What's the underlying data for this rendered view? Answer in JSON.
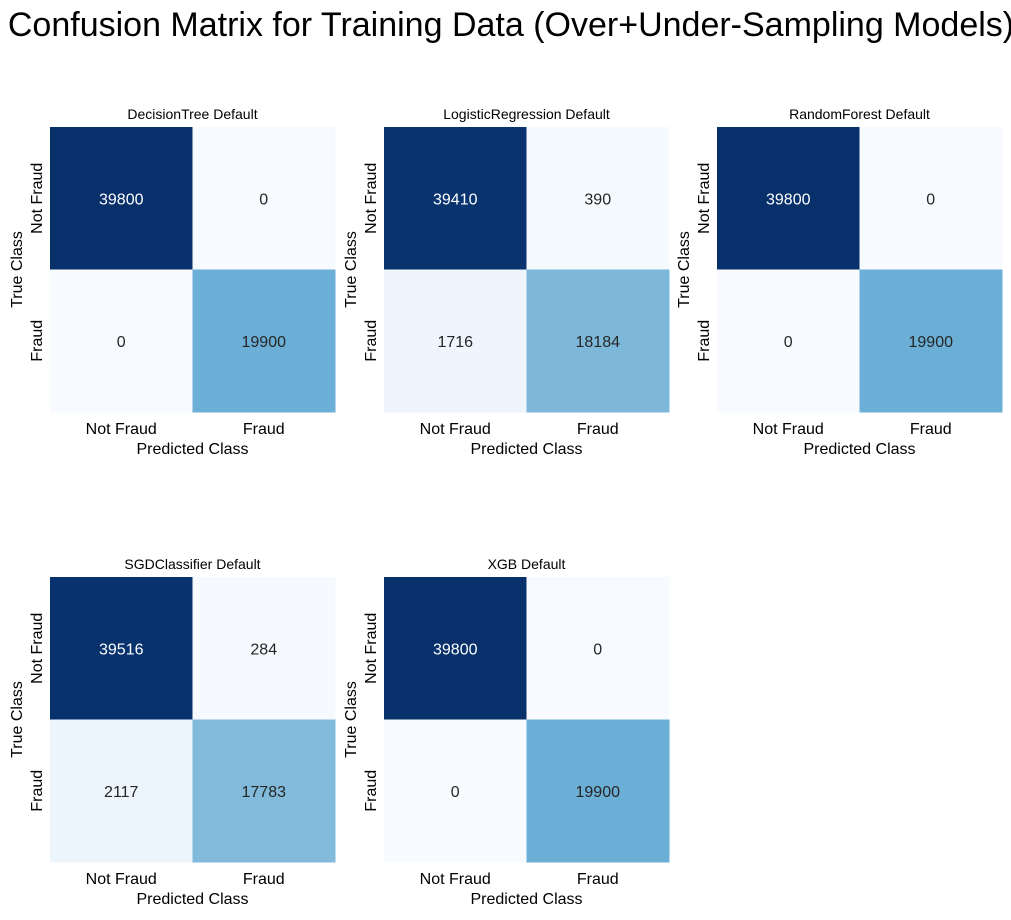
{
  "chart_data": {
    "title": "Confusion Matrix for Training Data (Over+Under-Sampling Models)",
    "type": "heatmap",
    "colormap": "Blues",
    "xlabel": "Predicted Class",
    "ylabel": "True Class",
    "x_categories": [
      "Not Fraud",
      "Fraud"
    ],
    "y_categories": [
      "Not Fraud",
      "Fraud"
    ],
    "color_range": [
      0,
      39800
    ],
    "panels": [
      {
        "title": "DecisionTree Default",
        "matrix": [
          [
            39800,
            0
          ],
          [
            0,
            19900
          ]
        ]
      },
      {
        "title": "LogisticRegression Default",
        "matrix": [
          [
            39410,
            390
          ],
          [
            1716,
            18184
          ]
        ]
      },
      {
        "title": "RandomForest Default",
        "matrix": [
          [
            39800,
            0
          ],
          [
            0,
            19900
          ]
        ]
      },
      {
        "title": "SGDClassifier Default",
        "matrix": [
          [
            39516,
            284
          ],
          [
            2117,
            17783
          ]
        ]
      },
      {
        "title": "XGB Default",
        "matrix": [
          [
            39800,
            0
          ],
          [
            0,
            19900
          ]
        ]
      }
    ]
  }
}
